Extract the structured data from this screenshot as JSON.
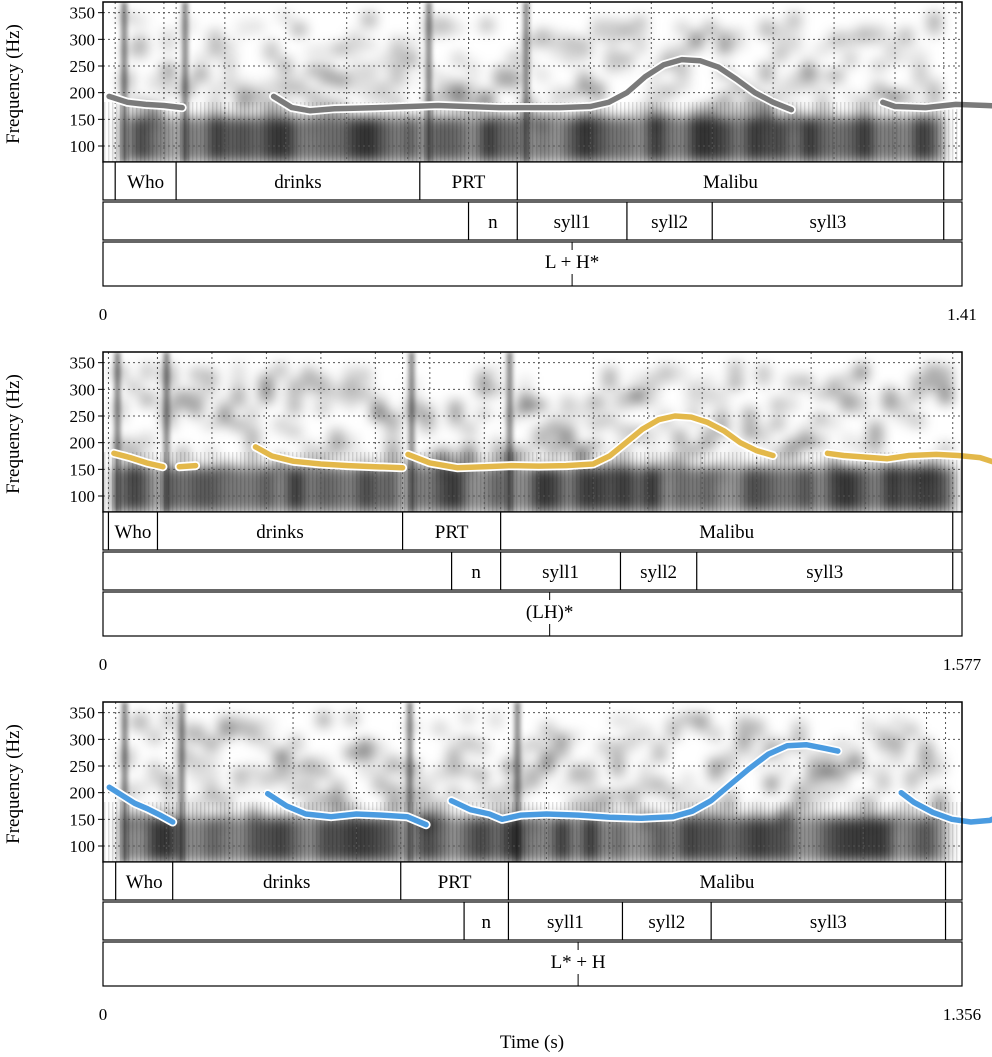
{
  "chart_data": {
    "type": "line",
    "xlabel": "Time (s)",
    "ylabel": "Frequency (Hz)",
    "ylim": [
      70,
      370
    ],
    "yticks": [
      100,
      150,
      200,
      250,
      300,
      350
    ],
    "grid": true,
    "panels": [
      {
        "duration": 1.41,
        "x_start_label": "0",
        "x_end_label": "1.41",
        "line_color": "#7a7a7a",
        "pitch_segments": [
          [
            [
              0.01,
              193
            ],
            [
              0.04,
              182
            ],
            [
              0.07,
              178
            ],
            [
              0.1,
              176
            ],
            [
              0.13,
              172
            ]
          ],
          [
            [
              0.28,
              193
            ],
            [
              0.31,
              172
            ],
            [
              0.34,
              166
            ],
            [
              0.38,
              170
            ],
            [
              0.45,
              172
            ],
            [
              0.55,
              176
            ],
            [
              0.65,
              172
            ],
            [
              0.75,
              172
            ],
            [
              0.8,
              174
            ],
            [
              0.83,
              182
            ],
            [
              0.86,
              200
            ],
            [
              0.89,
              230
            ],
            [
              0.92,
              252
            ],
            [
              0.95,
              262
            ],
            [
              0.98,
              260
            ],
            [
              1.01,
              248
            ],
            [
              1.04,
              225
            ],
            [
              1.07,
              200
            ],
            [
              1.1,
              182
            ],
            [
              1.13,
              168
            ]
          ],
          [
            [
              1.28,
              182
            ],
            [
              1.3,
              174
            ],
            [
              1.35,
              172
            ],
            [
              1.4,
              178
            ],
            [
              1.45,
              176
            ],
            [
              1.52,
              172
            ],
            [
              1.58,
              172
            ],
            [
              1.63,
              166
            ]
          ]
        ],
        "words": [
          {
            "start": 0.0,
            "end": 0.02,
            "label": ""
          },
          {
            "start": 0.02,
            "end": 0.12,
            "label": "Who"
          },
          {
            "start": 0.12,
            "end": 0.52,
            "label": "drinks"
          },
          {
            "start": 0.52,
            "end": 0.68,
            "label": "PRT"
          },
          {
            "start": 0.68,
            "end": 1.38,
            "label": "Malibu"
          },
          {
            "start": 1.38,
            "end": 1.41,
            "label": ""
          }
        ],
        "syllables": [
          {
            "start": 0.0,
            "end": 0.6,
            "label": ""
          },
          {
            "start": 0.6,
            "end": 0.68,
            "label": "n"
          },
          {
            "start": 0.68,
            "end": 0.86,
            "label": "syll1"
          },
          {
            "start": 0.86,
            "end": 1.0,
            "label": "syll2"
          },
          {
            "start": 1.0,
            "end": 1.38,
            "label": "syll3"
          },
          {
            "start": 1.38,
            "end": 1.41,
            "label": ""
          }
        ],
        "tone": {
          "time": 0.77,
          "label": "L + H*"
        }
      },
      {
        "duration": 1.577,
        "x_start_label": "0",
        "x_end_label": "1.577",
        "line_color": "#e3b84a",
        "pitch_segments": [
          [
            [
              0.02,
              180
            ],
            [
              0.05,
              172
            ],
            [
              0.08,
              162
            ],
            [
              0.11,
              155
            ]
          ],
          [
            [
              0.14,
              155
            ],
            [
              0.17,
              157
            ]
          ],
          [
            [
              0.28,
              192
            ],
            [
              0.31,
              175
            ],
            [
              0.35,
              165
            ],
            [
              0.4,
              160
            ],
            [
              0.45,
              157
            ],
            [
              0.5,
              155
            ],
            [
              0.55,
              153
            ]
          ],
          [
            [
              0.56,
              178
            ],
            [
              0.6,
              162
            ],
            [
              0.65,
              153
            ],
            [
              0.7,
              155
            ],
            [
              0.75,
              157
            ],
            [
              0.8,
              156
            ],
            [
              0.85,
              157
            ],
            [
              0.9,
              160
            ],
            [
              0.93,
              175
            ],
            [
              0.96,
              200
            ],
            [
              0.99,
              225
            ],
            [
              1.02,
              243
            ],
            [
              1.05,
              250
            ],
            [
              1.08,
              248
            ],
            [
              1.11,
              238
            ],
            [
              1.14,
              222
            ],
            [
              1.17,
              200
            ],
            [
              1.2,
              185
            ],
            [
              1.23,
              176
            ]
          ],
          [
            [
              1.33,
              180
            ],
            [
              1.36,
              176
            ],
            [
              1.4,
              173
            ],
            [
              1.44,
              170
            ],
            [
              1.48,
              176
            ],
            [
              1.53,
              178
            ],
            [
              1.57,
              176
            ],
            [
              1.61,
              172
            ],
            [
              1.64,
              162
            ],
            [
              1.67,
              158
            ],
            [
              1.7,
              158
            ]
          ]
        ],
        "words": [
          {
            "start": 0.0,
            "end": 0.01,
            "label": ""
          },
          {
            "start": 0.01,
            "end": 0.1,
            "label": "Who"
          },
          {
            "start": 0.1,
            "end": 0.55,
            "label": "drinks"
          },
          {
            "start": 0.55,
            "end": 0.73,
            "label": "PRT"
          },
          {
            "start": 0.73,
            "end": 1.56,
            "label": "Malibu"
          },
          {
            "start": 1.56,
            "end": 1.577,
            "label": ""
          }
        ],
        "syllables": [
          {
            "start": 0.0,
            "end": 0.64,
            "label": ""
          },
          {
            "start": 0.64,
            "end": 0.73,
            "label": "n"
          },
          {
            "start": 0.73,
            "end": 0.95,
            "label": "syll1"
          },
          {
            "start": 0.95,
            "end": 1.09,
            "label": "syll2"
          },
          {
            "start": 1.09,
            "end": 1.56,
            "label": "syll3"
          },
          {
            "start": 1.56,
            "end": 1.577,
            "label": ""
          }
        ],
        "tone": {
          "time": 0.82,
          "label": "(LH)*"
        }
      },
      {
        "duration": 1.356,
        "x_start_label": "0",
        "x_end_label": "1.356",
        "line_color": "#4a9be0",
        "pitch_segments": [
          [
            [
              0.01,
              210
            ],
            [
              0.03,
              195
            ],
            [
              0.05,
              180
            ],
            [
              0.07,
              170
            ],
            [
              0.09,
              158
            ],
            [
              0.11,
              145
            ]
          ],
          [
            [
              0.26,
              198
            ],
            [
              0.29,
              175
            ],
            [
              0.32,
              160
            ],
            [
              0.36,
              155
            ],
            [
              0.4,
              160
            ],
            [
              0.44,
              158
            ],
            [
              0.48,
              155
            ],
            [
              0.51,
              140
            ]
          ],
          [
            [
              0.55,
              185
            ],
            [
              0.58,
              168
            ],
            [
              0.61,
              160
            ],
            [
              0.63,
              150
            ],
            [
              0.66,
              158
            ],
            [
              0.7,
              160
            ],
            [
              0.75,
              158
            ],
            [
              0.8,
              154
            ],
            [
              0.85,
              152
            ],
            [
              0.9,
              155
            ],
            [
              0.93,
              165
            ],
            [
              0.96,
              185
            ],
            [
              0.99,
              215
            ],
            [
              1.02,
              245
            ],
            [
              1.05,
              272
            ],
            [
              1.08,
              288
            ],
            [
              1.11,
              290
            ],
            [
              1.14,
              283
            ],
            [
              1.16,
              278
            ]
          ],
          [
            [
              1.26,
              200
            ],
            [
              1.28,
              182
            ],
            [
              1.31,
              163
            ],
            [
              1.34,
              150
            ],
            [
              1.37,
              145
            ],
            [
              1.4,
              148
            ],
            [
              1.43,
              165
            ],
            [
              1.48,
              168
            ],
            [
              1.52,
              165
            ],
            [
              1.56,
              167
            ],
            [
              1.6,
              162
            ],
            [
              1.62,
              160
            ]
          ]
        ],
        "words": [
          {
            "start": 0.0,
            "end": 0.02,
            "label": ""
          },
          {
            "start": 0.02,
            "end": 0.11,
            "label": "Who"
          },
          {
            "start": 0.11,
            "end": 0.47,
            "label": "drinks"
          },
          {
            "start": 0.47,
            "end": 0.64,
            "label": "PRT"
          },
          {
            "start": 0.64,
            "end": 1.33,
            "label": "Malibu"
          },
          {
            "start": 1.33,
            "end": 1.356,
            "label": ""
          }
        ],
        "syllables": [
          {
            "start": 0.0,
            "end": 0.57,
            "label": ""
          },
          {
            "start": 0.57,
            "end": 0.64,
            "label": "n"
          },
          {
            "start": 0.64,
            "end": 0.82,
            "label": "syll1"
          },
          {
            "start": 0.82,
            "end": 0.96,
            "label": "syll2"
          },
          {
            "start": 0.96,
            "end": 1.33,
            "label": "syll3"
          },
          {
            "start": 1.33,
            "end": 1.356,
            "label": ""
          }
        ],
        "tone": {
          "time": 0.75,
          "label": "L* + H"
        }
      }
    ]
  }
}
